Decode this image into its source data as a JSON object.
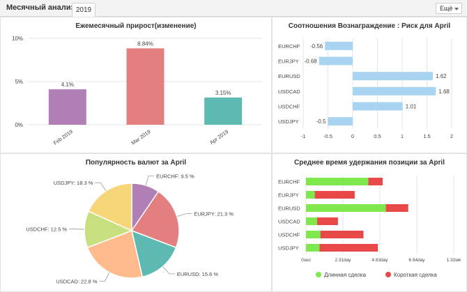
{
  "header": {
    "title": "Месячный анализ",
    "tab_label": "2019",
    "more_label": "Ещё"
  },
  "colors": {
    "long": "#7ee84c",
    "short": "#e84848",
    "rr_bar": "#a8d4f2",
    "grid": "#e5e5e5"
  },
  "chart_data": [
    {
      "type": "bar",
      "title": "Ежемесячный прирост(изменение)",
      "categories": [
        "Feb 2019",
        "Mar 2019",
        "Apr 2019"
      ],
      "values": [
        4.1,
        8.84,
        3.15
      ],
      "data_labels": [
        "4.1%",
        "8.84%",
        "3.15%"
      ],
      "colors": [
        "#b07fb5",
        "#e37f7f",
        "#5dbab3"
      ],
      "yticks": [
        "0%",
        "5%",
        "10%"
      ],
      "ylim": [
        0,
        10
      ],
      "grid": true
    },
    {
      "type": "bar",
      "orientation": "horizontal",
      "title": "Соотношения Вознаграждение : Риск для April",
      "categories": [
        "EURCHF",
        "EURJPY",
        "EURUSD",
        "USDCAD",
        "USDCHF",
        "USDJPY"
      ],
      "values": [
        -0.56,
        -0.68,
        1.62,
        1.68,
        1.01,
        -0.5
      ],
      "data_labels": [
        "-0.56",
        "-0.68",
        "1.62",
        "1.68",
        "1.01",
        "-0.5"
      ],
      "xticks": [
        "-1",
        "-0.5",
        "0",
        "0.5",
        "1",
        "1.5",
        "2"
      ],
      "xlim": [
        -1,
        2
      ],
      "grid": true
    },
    {
      "type": "pie",
      "title": "Популярность валют за April",
      "labels": [
        "EURCHF",
        "EURJPY",
        "EURUSD",
        "USDCAD",
        "USDCHF",
        "USDJPY"
      ],
      "values": [
        9.5,
        21.3,
        15.6,
        22.8,
        12.5,
        18.3
      ],
      "slice_labels": [
        "EURCHF: 9.5 %",
        "EURJPY: 21.3 %",
        "EURUSD: 15.6 %",
        "USDCAD: 22.8 %",
        "USDCHF: 12.5 %",
        "USDJPY: 18.3 %"
      ],
      "colors": [
        "#b07fb5",
        "#e37f7f",
        "#5dbab3",
        "#ffbb8c",
        "#c8df7f",
        "#f7d67a"
      ]
    },
    {
      "type": "bar",
      "orientation": "horizontal",
      "stacked": true,
      "title": "Среднее время удержания позиции за April",
      "categories": [
        "EURCHF",
        "EURJPY",
        "EURUSD",
        "USDCAD",
        "USDCHF",
        "USDJPY"
      ],
      "series": [
        {
          "name": "Длинная сделка",
          "values": [
            3.9,
            0.55,
            5.0,
            0.7,
            0.9,
            0.85
          ]
        },
        {
          "name": "Короткая сделка",
          "values": [
            0.9,
            2.5,
            1.4,
            1.3,
            2.7,
            3.65
          ]
        }
      ],
      "xticks": [
        "0sec",
        "2.31day",
        "4.63day",
        "6.94day",
        "1.32wk"
      ],
      "xlim": [
        0,
        9.25
      ],
      "legend": "bottom"
    }
  ]
}
